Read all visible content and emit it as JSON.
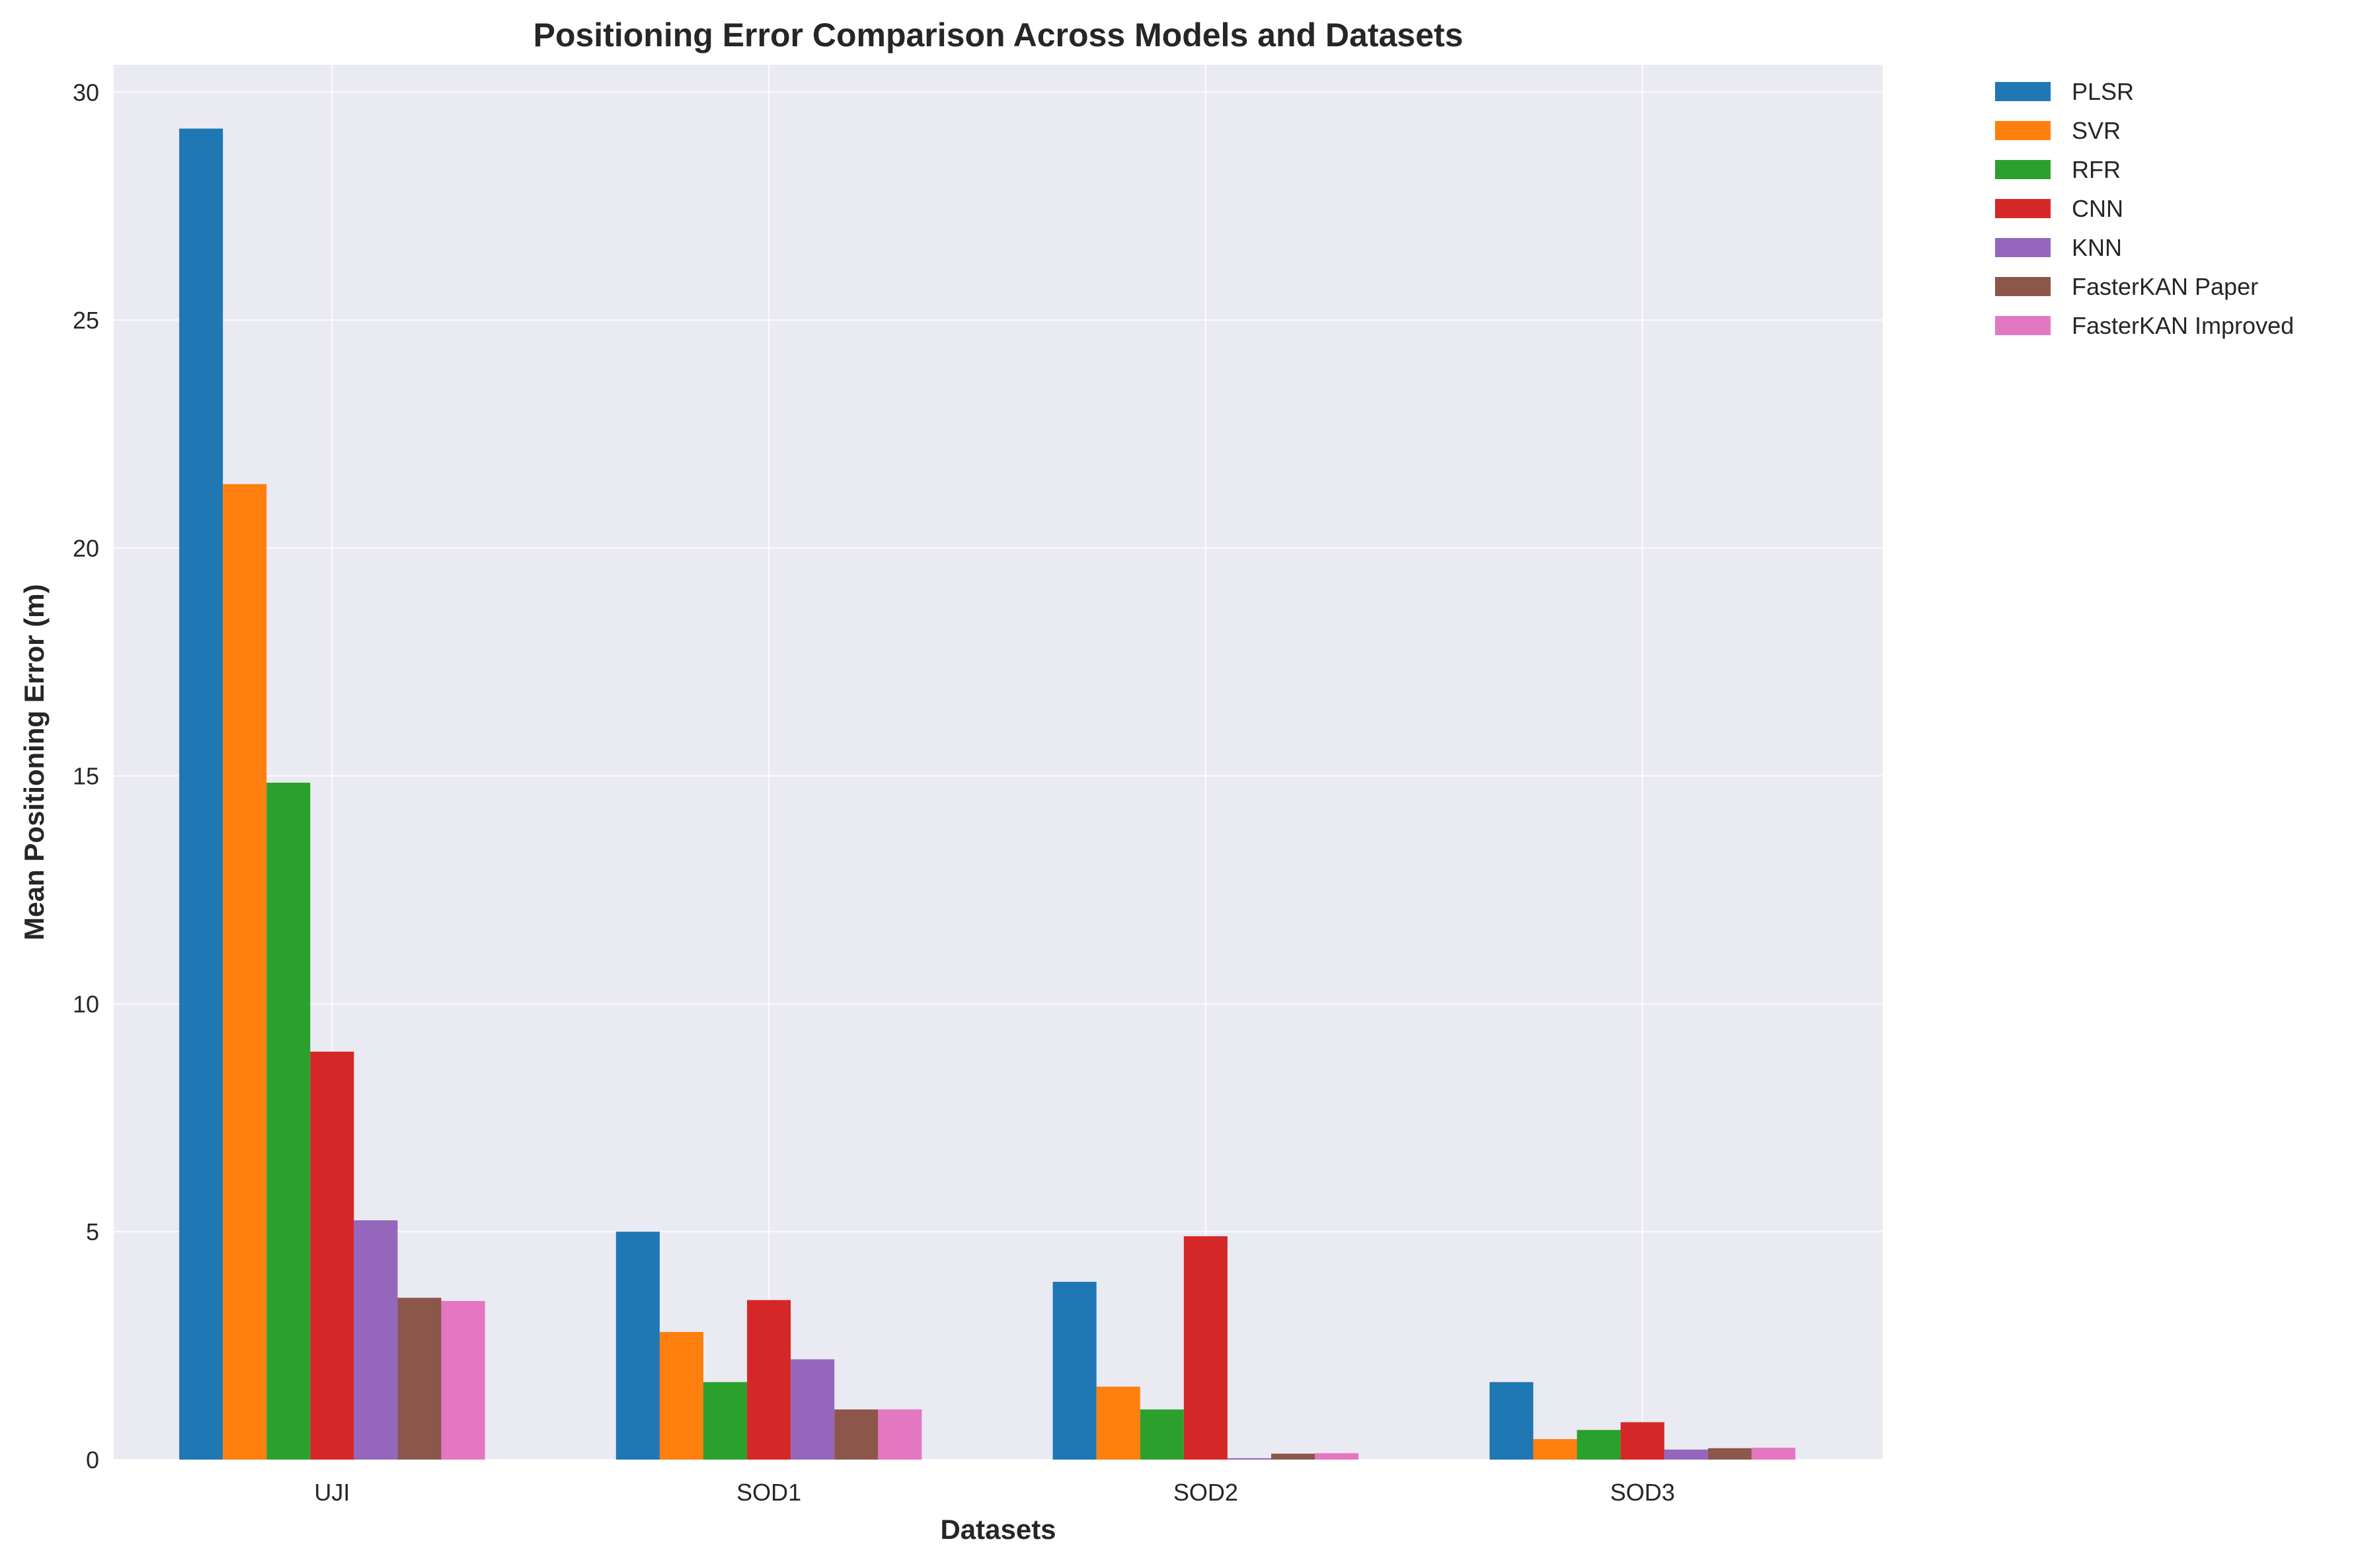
{
  "chart_data": {
    "type": "bar",
    "title": "Positioning Error Comparison Across Models and Datasets",
    "xlabel": "Datasets",
    "ylabel": "Mean Positioning Error (m)",
    "categories": [
      "UJI",
      "SOD1",
      "SOD2",
      "SOD3"
    ],
    "ylim": [
      0,
      30.6
    ],
    "yticks": [
      0,
      5,
      10,
      15,
      20,
      25,
      30
    ],
    "grid": true,
    "legend_position": "outside-top-right",
    "series": [
      {
        "name": "PLSR",
        "color": "#1f77b4",
        "values": [
          29.2,
          5.0,
          3.9,
          1.7
        ]
      },
      {
        "name": "SVR",
        "color": "#ff7f0e",
        "values": [
          21.4,
          2.8,
          1.6,
          0.45
        ]
      },
      {
        "name": "RFR",
        "color": "#2ca02c",
        "values": [
          14.85,
          1.7,
          1.1,
          0.65
        ]
      },
      {
        "name": "CNN",
        "color": "#d62728",
        "values": [
          8.95,
          3.5,
          4.9,
          0.82
        ]
      },
      {
        "name": "KNN",
        "color": "#9467bd",
        "values": [
          5.25,
          2.2,
          0.03,
          0.22
        ]
      },
      {
        "name": "FasterKAN Paper",
        "color": "#8c564b",
        "values": [
          3.55,
          1.1,
          0.13,
          0.25
        ]
      },
      {
        "name": "FasterKAN Improved",
        "color": "#e377c2",
        "values": [
          3.48,
          1.1,
          0.14,
          0.26
        ]
      }
    ]
  },
  "colors": {
    "plot_background": "#eaeaf2",
    "grid": "#ffffff",
    "text": "#262626"
  }
}
